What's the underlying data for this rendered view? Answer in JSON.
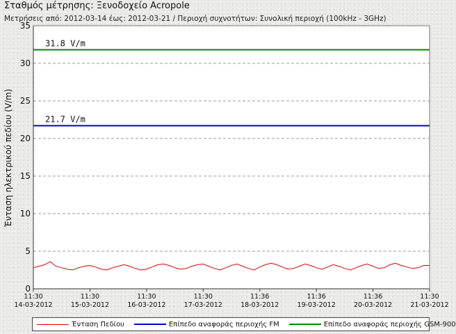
{
  "header": {
    "title": "Σταθμός μέτρησης: Ξενοδοχείο Acropole",
    "subtitle": "Μετρήσεις από: 2012-03-14 έως: 2012-03-21 / Περιοχή συχνοτήτων: Συνολική περιοχή (100kHz - 3GHz)"
  },
  "chart_data": {
    "type": "line",
    "ylabel": "Ένταση ηλεκτρικού πεδίου (V/m)",
    "ylim": [
      0,
      35
    ],
    "yticks": [
      0,
      5,
      10,
      15,
      20,
      25,
      30,
      35
    ],
    "grid": true,
    "x_ticks": [
      {
        "time": "11:30",
        "date": "14-03-2012"
      },
      {
        "time": "11:30",
        "date": "15-03-2012"
      },
      {
        "time": "11:30",
        "date": "16-03-2012"
      },
      {
        "time": "11:30",
        "date": "17-03-2012"
      },
      {
        "time": "11:36",
        "date": "18-03-2012"
      },
      {
        "time": "11:36",
        "date": "19-03-2012"
      },
      {
        "time": "11:36",
        "date": "20-03-2012"
      },
      {
        "time": "11:30",
        "date": "21-03-2012"
      }
    ],
    "series": [
      {
        "name": "Ένταση Πεδίου",
        "color": "#dd0000",
        "x_unit": "days since 14-03-2012 11:30",
        "x": [
          0,
          0.1,
          0.2,
          0.3,
          0.35,
          0.4,
          0.5,
          0.6,
          0.7,
          0.8,
          0.9,
          1.0,
          1.1,
          1.2,
          1.3,
          1.4,
          1.5,
          1.6,
          1.7,
          1.8,
          1.9,
          2.0,
          2.1,
          2.2,
          2.3,
          2.4,
          2.5,
          2.6,
          2.7,
          2.8,
          2.9,
          3.0,
          3.1,
          3.2,
          3.3,
          3.4,
          3.5,
          3.6,
          3.7,
          3.8,
          3.9,
          4.0,
          4.1,
          4.2,
          4.3,
          4.4,
          4.5,
          4.6,
          4.7,
          4.8,
          4.9,
          5.0,
          5.1,
          5.2,
          5.3,
          5.4,
          5.5,
          5.6,
          5.7,
          5.8,
          5.9,
          6.0,
          6.1,
          6.2,
          6.3,
          6.4,
          6.5,
          6.6,
          6.7,
          6.8,
          6.9,
          7.0
        ],
        "y": [
          2.8,
          3.0,
          3.2,
          3.6,
          3.3,
          3.0,
          2.8,
          2.6,
          2.5,
          2.8,
          3.0,
          3.1,
          2.9,
          2.6,
          2.5,
          2.8,
          3.0,
          3.2,
          3.0,
          2.7,
          2.5,
          2.6,
          2.9,
          3.2,
          3.3,
          3.1,
          2.8,
          2.6,
          2.7,
          3.0,
          3.2,
          3.3,
          3.0,
          2.7,
          2.5,
          2.8,
          3.1,
          3.3,
          3.0,
          2.7,
          2.5,
          2.9,
          3.2,
          3.4,
          3.2,
          2.9,
          2.6,
          2.7,
          3.0,
          3.3,
          3.1,
          2.8,
          2.6,
          2.9,
          3.2,
          3.0,
          2.7,
          2.5,
          2.8,
          3.1,
          3.3,
          3.0,
          2.7,
          2.8,
          3.2,
          3.4,
          3.1,
          2.9,
          2.7,
          2.8,
          3.1,
          3.1
        ]
      },
      {
        "name": "Επίπεδο αναφοράς περιοχής FM",
        "color": "#0000cc",
        "y_const": 21.7,
        "label": "21.7 V/m"
      },
      {
        "name": "Επίπεδο αναφοράς περιοχής GSM-900",
        "color": "#008800",
        "y_const": 31.8,
        "label": "31.8 V/m"
      }
    ]
  }
}
